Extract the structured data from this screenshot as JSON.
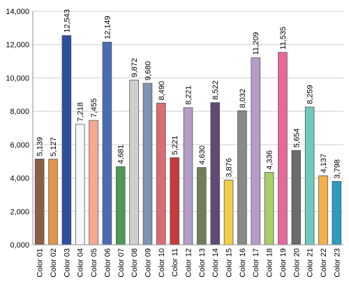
{
  "chart_data": {
    "type": "bar",
    "title": "",
    "xlabel": "",
    "ylabel": "",
    "ylim": [
      0,
      14000
    ],
    "yticks": [
      0,
      2000,
      4000,
      6000,
      8000,
      10000,
      12000,
      14000
    ],
    "ytick_labels": [
      "0,000",
      "2,000",
      "4,000",
      "6,000",
      "8,000",
      "10,000",
      "12,000",
      "14,000"
    ],
    "grid": true,
    "legend": "none",
    "categories": [
      "Color 01",
      "Color 02",
      "Color 03",
      "Color 04",
      "Color 05",
      "Color 06",
      "Color 07",
      "Color 08",
      "Color 09",
      "Color 10",
      "Color 11",
      "Color 12",
      "Color 13",
      "Color 14",
      "Color 15",
      "Color 16",
      "Color 17",
      "Color 18",
      "Color 19",
      "Color 20",
      "Color 21",
      "Color 22",
      "Color 23"
    ],
    "values": [
      5139,
      5127,
      12543,
      7218,
      7455,
      12149,
      4681,
      9872,
      9680,
      8490,
      5221,
      8221,
      4630,
      8522,
      3876,
      8032,
      11209,
      4336,
      11535,
      5654,
      8259,
      4137,
      3798
    ],
    "value_labels": [
      "5,139",
      "5,127",
      "12,543",
      "7,218",
      "7,455",
      "12,149",
      "4,681",
      "9,872",
      "9,680",
      "8,490",
      "5,221",
      "8,221",
      "4,630",
      "8,522",
      "3,876",
      "8,032",
      "11,209",
      "4,336",
      "11,535",
      "5,654",
      "8,259",
      "4,137",
      "3,798"
    ],
    "colors": [
      "#8b5e45",
      "#e0954a",
      "#2c4f9e",
      "#f7f7f7",
      "#f8a892",
      "#4a6db5",
      "#4d9a58",
      "#cfcfcf",
      "#7d95b4",
      "#dc6c73",
      "#c7393a",
      "#b49cc8",
      "#707f58",
      "#5d4a76",
      "#f4cc4a",
      "#8a8a8a",
      "#b59cc9",
      "#aacc6a",
      "#e86899",
      "#6b6b6b",
      "#6fc9bc",
      "#f5b04b",
      "#2c9cc0"
    ]
  }
}
